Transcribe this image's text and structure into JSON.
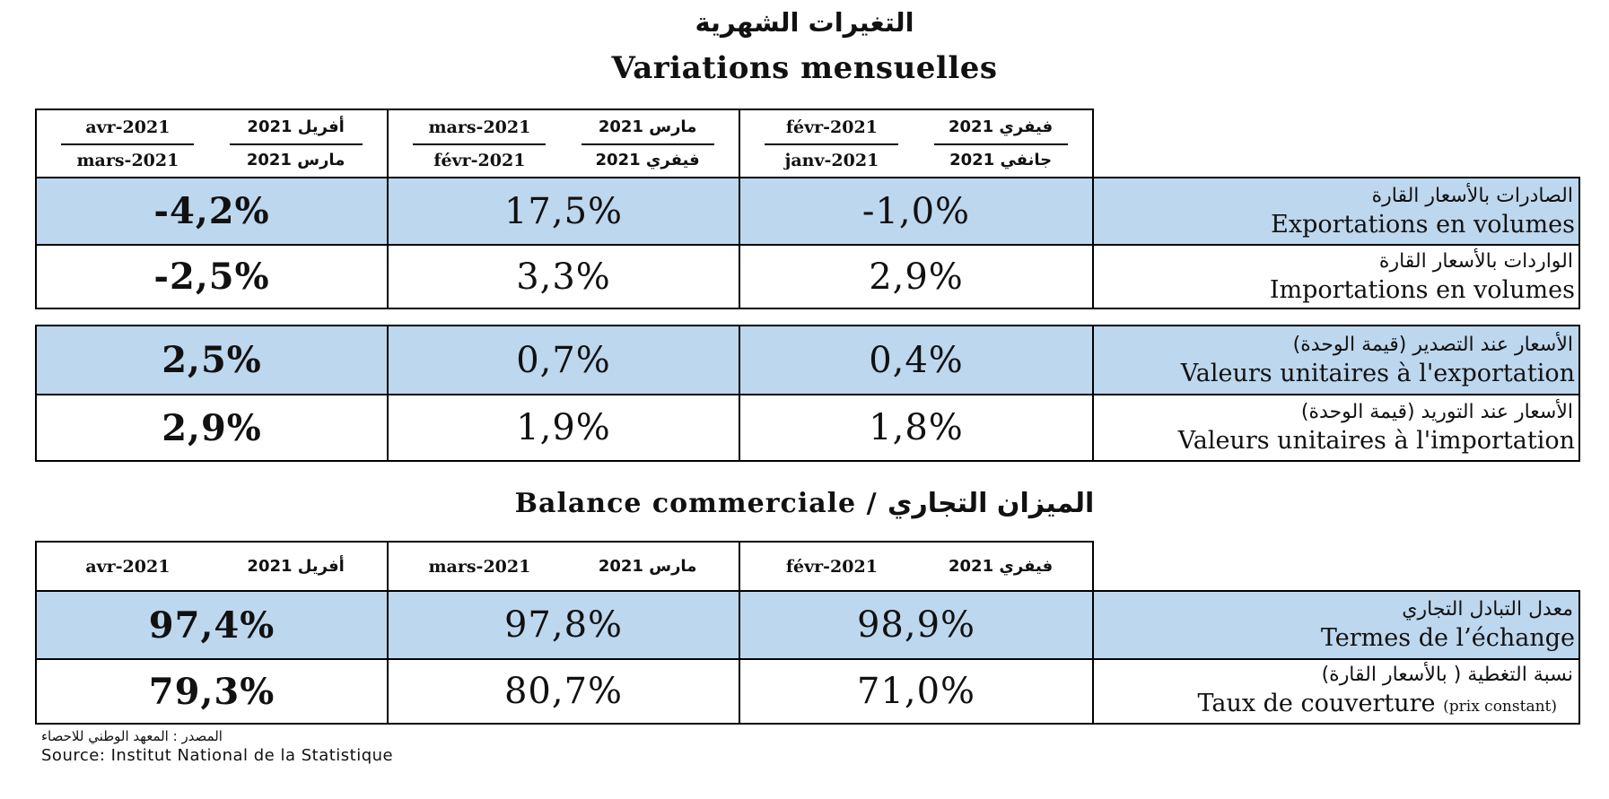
{
  "title_ar": "التغيرات الشهرية",
  "title_fr": "Variations mensuelles",
  "table1": {
    "headers": [
      {
        "fr_top": "avr-2021",
        "ar_top": "أفريل 2021",
        "fr_bottom": "mars-2021",
        "ar_bottom": "مارس 2021"
      },
      {
        "fr_top": "mars-2021",
        "ar_top": "مارس 2021",
        "fr_bottom": "févr-2021",
        "ar_bottom": "فيفري 2021"
      },
      {
        "fr_top": "févr-2021",
        "ar_top": "فيفري 2021",
        "fr_bottom": "janv-2021",
        "ar_bottom": "جانفي 2021"
      }
    ],
    "rows": [
      {
        "label_ar": "الصادرات بالأسعار القارة",
        "label_fr": "Exportations en volumes",
        "values": [
          "-4,2%",
          "17,5%",
          "-1,0%"
        ]
      },
      {
        "label_ar": "الواردات بالأسعار القارة",
        "label_fr": "Importations en volumes",
        "values": [
          "-2,5%",
          "3,3%",
          "2,9%"
        ]
      }
    ]
  },
  "table2": {
    "rows": [
      {
        "label_ar": "الأسعار عند التصدير (قيمة الوحدة)",
        "label_fr": "Valeurs unitaires à l'exportation",
        "values": [
          "2,5%",
          "0,7%",
          "0,4%"
        ]
      },
      {
        "label_ar": "الأسعار عند التوريد (قيمة الوحدة)",
        "label_fr": "Valeurs unitaires à l'importation",
        "values": [
          "2,9%",
          "1,9%",
          "1,8%"
        ]
      }
    ]
  },
  "section2_title_fr": "Balance commerciale / ",
  "section2_title_ar": "الميزان التجاري",
  "table3": {
    "headers": [
      {
        "fr": "avr-2021",
        "ar": "أفريل 2021"
      },
      {
        "fr": "mars-2021",
        "ar": "مارس 2021"
      },
      {
        "fr": "févr-2021",
        "ar": "فيفري 2021"
      }
    ],
    "rows": [
      {
        "label_ar": "معدل التبادل التجاري",
        "label_fr": "Termes de l’échange",
        "label_fr_small": "",
        "values": [
          "97,4%",
          "97,8%",
          "98,9%"
        ]
      },
      {
        "label_ar": "نسبة التغطية ( بالأسعار القارة)",
        "label_fr": "Taux de couverture ",
        "label_fr_small": "(prix constant)",
        "values": [
          "79,3%",
          "80,7%",
          "71,0%"
        ]
      }
    ]
  },
  "source_ar": "المصدر : المعهد الوطني للاحصاء",
  "source_fr": "Source: Institut National de la Statistique"
}
